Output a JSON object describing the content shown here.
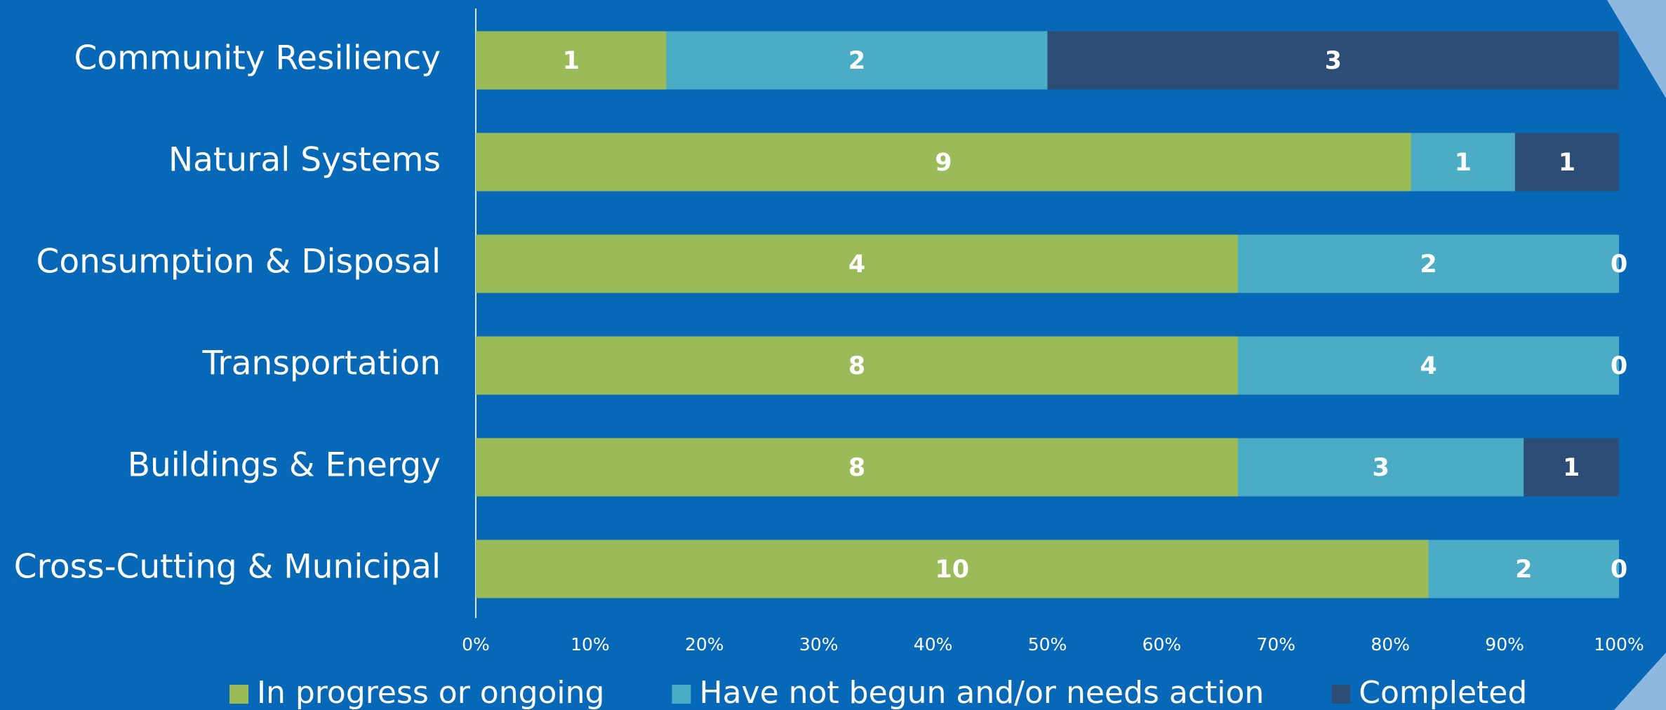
{
  "chart_data": {
    "type": "bar",
    "orientation": "horizontal",
    "stacking": "percent",
    "categories": [
      "Community Resiliency",
      "Natural Systems",
      "Consumption & Disposal",
      "Transportation",
      "Buildings & Energy",
      "Cross-Cutting & Municipal"
    ],
    "series": [
      {
        "name": "In progress or ongoing",
        "color": "#9bbb59",
        "values": [
          1,
          9,
          4,
          8,
          8,
          10
        ]
      },
      {
        "name": "Have not begun and/or needs action",
        "color": "#4bacc6",
        "values": [
          2,
          1,
          2,
          4,
          3,
          2
        ]
      },
      {
        "name": "Completed",
        "color": "#2c4d75",
        "values": [
          3,
          1,
          0,
          0,
          1,
          0
        ]
      }
    ],
    "xlim": [
      0,
      100
    ],
    "xticks": [
      {
        "value": 0,
        "label": "0%"
      },
      {
        "value": 10,
        "label": "10%"
      },
      {
        "value": 20,
        "label": "20%"
      },
      {
        "value": 30,
        "label": "30%"
      },
      {
        "value": 40,
        "label": "40%"
      },
      {
        "value": 50,
        "label": "50%"
      },
      {
        "value": 60,
        "label": "60%"
      },
      {
        "value": 70,
        "label": "70%"
      },
      {
        "value": 80,
        "label": "80%"
      },
      {
        "value": 90,
        "label": "90%"
      },
      {
        "value": 100,
        "label": "100%"
      }
    ],
    "legend": "bottom"
  }
}
